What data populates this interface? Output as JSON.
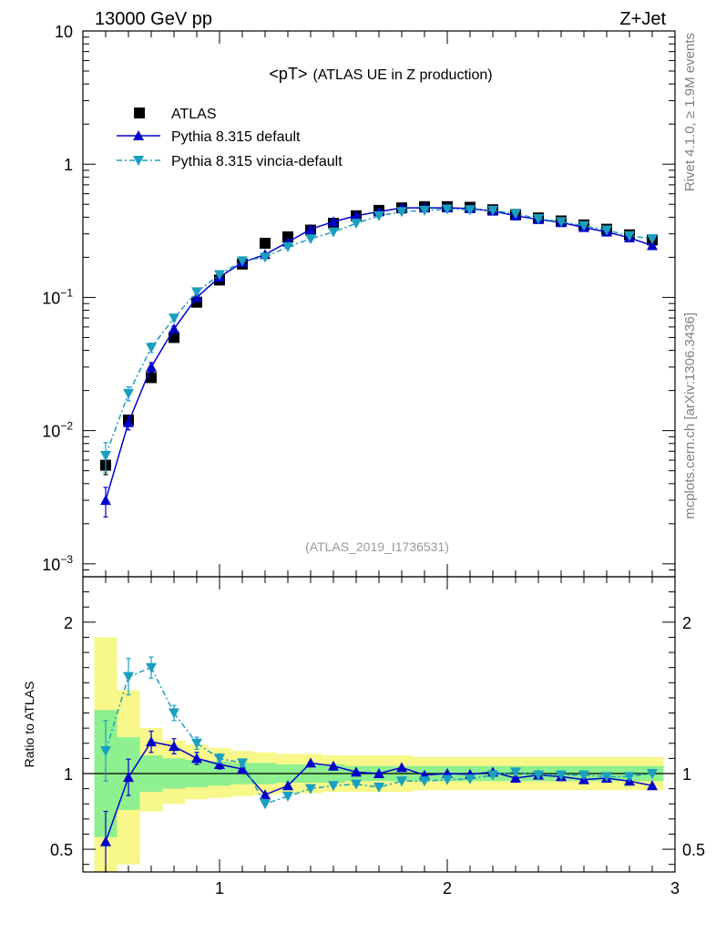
{
  "header": {
    "left": "13000 GeV pp",
    "right": "Z+Jet"
  },
  "side_labels": {
    "rivet": "Rivet 4.1.0, ≥ 1.9M events",
    "mcplots": "mcplots.cern.ch [arXiv:1306.3436]"
  },
  "colors": {
    "data": "#000000",
    "pythia_default": "#0000cc",
    "vincia": "#1a9fbf",
    "band_inner": "#8ef08e",
    "band_outer": "#f7f78a"
  },
  "chart_data": [
    {
      "type": "scatter",
      "panel": "main",
      "title": "<pT> (ATLAS UE in Z production)",
      "title_main": "<pT>",
      "title_sub": "(ATLAS UE in Z production)",
      "watermark": "(ATLAS_2019_I1736531)",
      "xlabel": "",
      "ylabel": "",
      "yscale": "log",
      "xlim": [
        0.4,
        3.0
      ],
      "ylim": [
        0.0008,
        10
      ],
      "x_ticks": [
        1,
        2,
        3
      ],
      "y_ticks": [
        {
          "value": 10,
          "base": "10",
          "exp": ""
        },
        {
          "value": 1,
          "base": "1",
          "exp": ""
        },
        {
          "value": 0.1,
          "base": "10",
          "exp": "−1"
        },
        {
          "value": 0.01,
          "base": "10",
          "exp": "−2"
        },
        {
          "value": 0.001,
          "base": "10",
          "exp": "−3"
        }
      ],
      "legend": [
        "ATLAS",
        "Pythia 8.315 default",
        "Pythia 8.315 vincia-default"
      ],
      "legend_position": "top-left",
      "x": [
        0.5,
        0.6,
        0.7,
        0.8,
        0.9,
        1.0,
        1.1,
        1.2,
        1.3,
        1.4,
        1.5,
        1.6,
        1.7,
        1.8,
        1.9,
        2.0,
        2.1,
        2.2,
        2.3,
        2.4,
        2.5,
        2.6,
        2.7,
        2.8,
        2.9
      ],
      "series": [
        {
          "name": "ATLAS",
          "marker": "square",
          "values": [
            0.0055,
            0.012,
            0.025,
            0.05,
            0.092,
            0.135,
            0.178,
            0.255,
            0.285,
            0.32,
            0.36,
            0.41,
            0.45,
            0.47,
            0.48,
            0.48,
            0.475,
            0.455,
            0.42,
            0.395,
            0.375,
            0.35,
            0.325,
            0.295,
            0.27
          ]
        },
        {
          "name": "Pythia 8.315 default",
          "marker": "triangle-up",
          "values": [
            0.003,
            0.0115,
            0.03,
            0.058,
            0.1,
            0.142,
            0.183,
            0.21,
            0.26,
            0.325,
            0.37,
            0.41,
            0.44,
            0.47,
            0.47,
            0.47,
            0.465,
            0.445,
            0.41,
            0.385,
            0.365,
            0.335,
            0.31,
            0.28,
            0.245
          ]
        },
        {
          "name": "Pythia 8.315 vincia-default",
          "marker": "triangle-down",
          "values": [
            0.0065,
            0.019,
            0.042,
            0.07,
            0.11,
            0.148,
            0.188,
            0.2,
            0.24,
            0.275,
            0.31,
            0.36,
            0.41,
            0.44,
            0.45,
            0.46,
            0.455,
            0.45,
            0.425,
            0.39,
            0.37,
            0.345,
            0.32,
            0.29,
            0.275
          ]
        }
      ]
    },
    {
      "type": "scatter",
      "panel": "ratio",
      "ylabel": "Ratio to ATLAS",
      "xlim": [
        0.4,
        3.0
      ],
      "ylim": [
        0.35,
        2.3
      ],
      "y_ticks": [
        {
          "value": 0.5,
          "label": "0.5"
        },
        {
          "value": 1,
          "label": "1"
        },
        {
          "value": 2,
          "label": "2"
        }
      ],
      "x_ticks": [
        1,
        2,
        3
      ],
      "x": [
        0.5,
        0.6,
        0.7,
        0.8,
        0.9,
        1.0,
        1.1,
        1.2,
        1.3,
        1.4,
        1.5,
        1.6,
        1.7,
        1.8,
        1.9,
        2.0,
        2.1,
        2.2,
        2.3,
        2.4,
        2.5,
        2.6,
        2.7,
        2.8,
        2.9
      ],
      "band_inner": {
        "lo": [
          0.58,
          0.76,
          0.88,
          0.9,
          0.91,
          0.92,
          0.93,
          0.93,
          0.94,
          0.94,
          0.94,
          0.95,
          0.95,
          0.95,
          0.95,
          0.95,
          0.95,
          0.95,
          0.95,
          0.95,
          0.95,
          0.95,
          0.95,
          0.95,
          0.95
        ],
        "hi": [
          1.42,
          1.24,
          1.12,
          1.1,
          1.09,
          1.08,
          1.07,
          1.07,
          1.06,
          1.06,
          1.06,
          1.05,
          1.05,
          1.05,
          1.05,
          1.05,
          1.05,
          1.05,
          1.05,
          1.05,
          1.05,
          1.05,
          1.05,
          1.05,
          1.05
        ]
      },
      "band_outer": {
        "lo": [
          0.3,
          0.4,
          0.75,
          0.8,
          0.83,
          0.84,
          0.85,
          0.86,
          0.87,
          0.87,
          0.88,
          0.88,
          0.88,
          0.88,
          0.89,
          0.89,
          0.89,
          0.89,
          0.89,
          0.89,
          0.89,
          0.89,
          0.89,
          0.89,
          0.89
        ],
        "hi": [
          1.9,
          1.55,
          1.3,
          1.22,
          1.19,
          1.17,
          1.15,
          1.14,
          1.13,
          1.13,
          1.12,
          1.12,
          1.12,
          1.12,
          1.11,
          1.11,
          1.11,
          1.11,
          1.11,
          1.11,
          1.11,
          1.11,
          1.11,
          1.11,
          1.11
        ]
      },
      "series": [
        {
          "name": "Pythia 8.315 default",
          "marker": "triangle-up",
          "values": [
            0.55,
            0.975,
            1.21,
            1.18,
            1.1,
            1.06,
            1.03,
            0.86,
            0.92,
            1.07,
            1.05,
            1.01,
            1.0,
            1.04,
            0.99,
            1.0,
            0.995,
            1.01,
            0.97,
            0.99,
            0.98,
            0.96,
            0.97,
            0.95,
            0.92
          ]
        },
        {
          "name": "Pythia 8.315 vincia-default",
          "marker": "triangle-down",
          "values": [
            1.15,
            1.64,
            1.7,
            1.4,
            1.2,
            1.1,
            1.07,
            0.8,
            0.85,
            0.9,
            0.92,
            0.93,
            0.91,
            0.95,
            0.95,
            0.96,
            0.965,
            0.99,
            1.01,
            0.99,
            0.99,
            0.99,
            0.98,
            0.98,
            1.0
          ]
        }
      ]
    }
  ]
}
